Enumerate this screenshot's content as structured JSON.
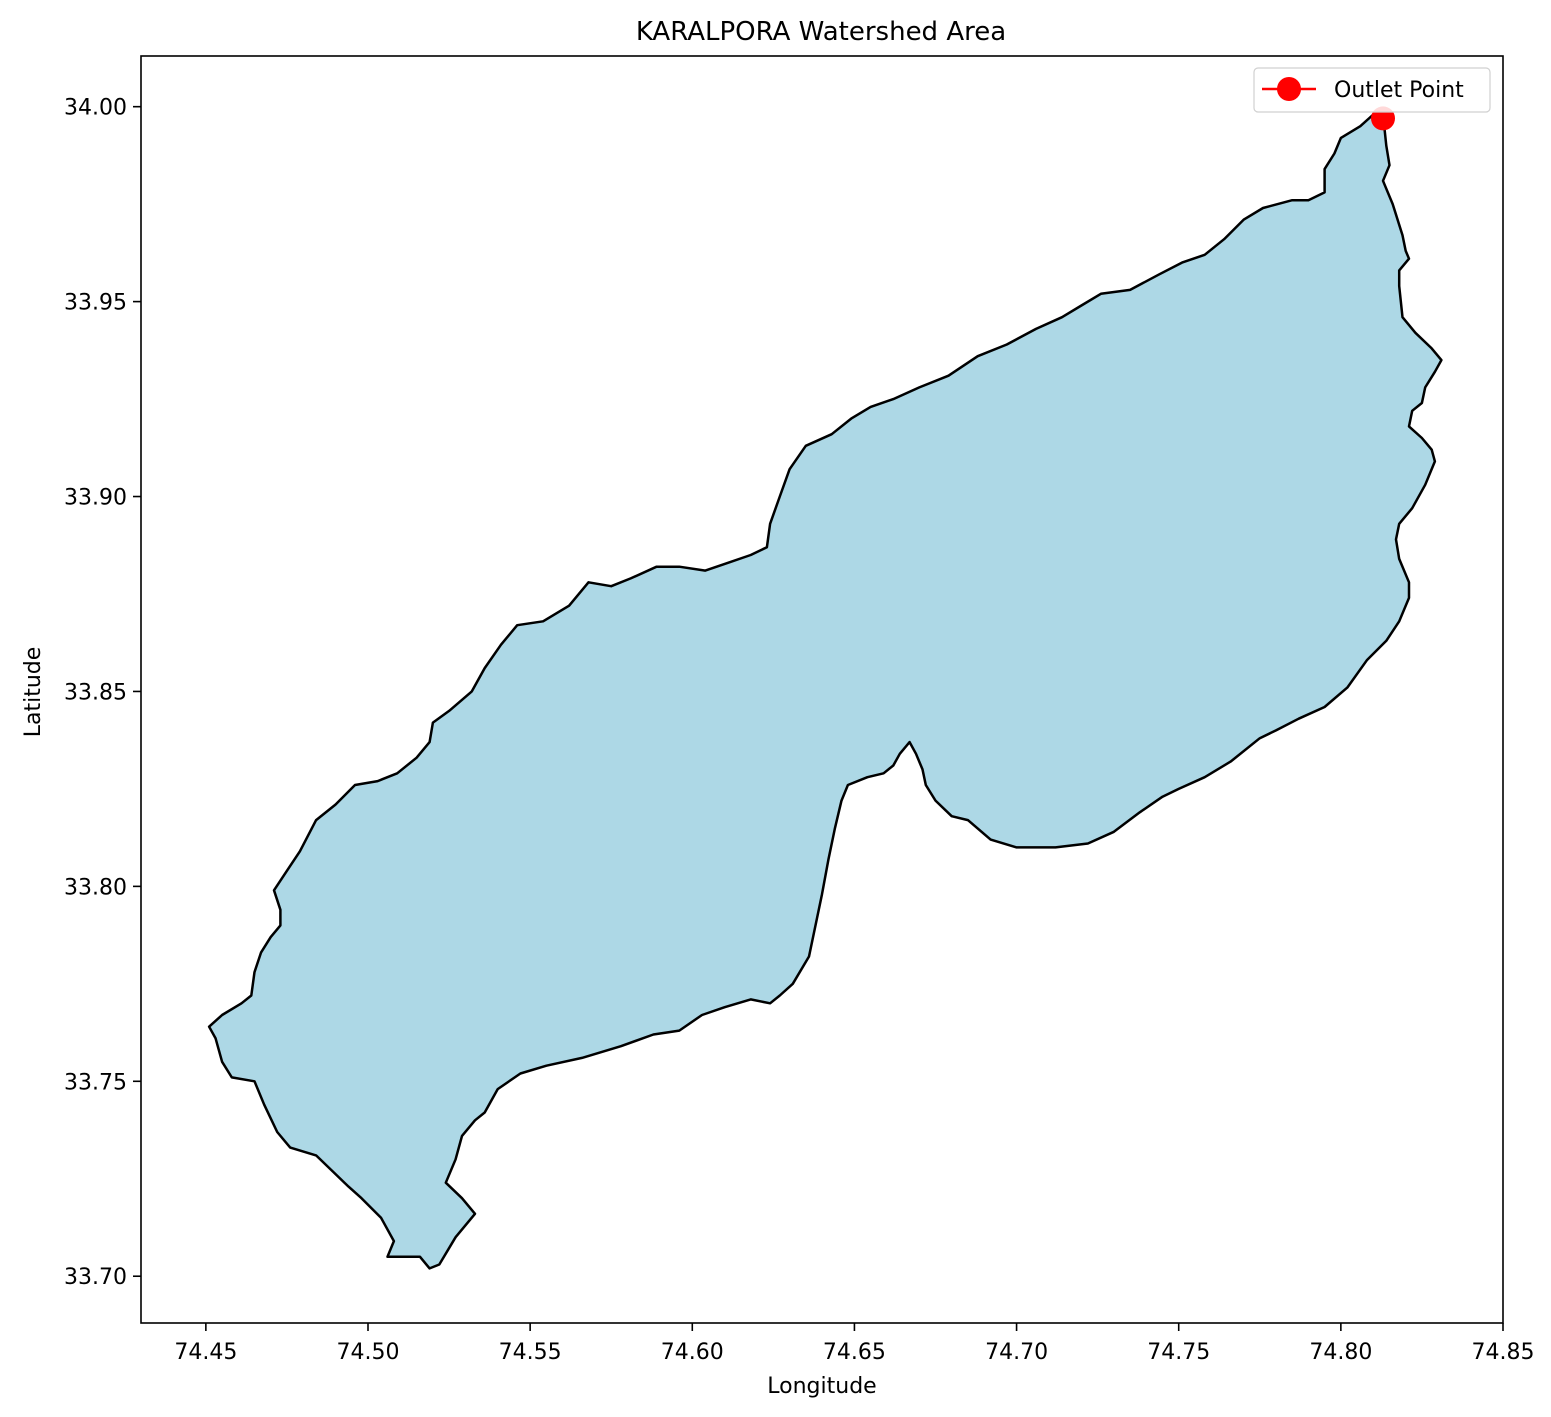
{
  "chart_data": {
    "type": "map",
    "title": "KARALPORA Watershed Area",
    "xlabel": "Longitude",
    "ylabel": "Latitude",
    "xlim": [
      74.43,
      74.85
    ],
    "ylim": [
      33.688,
      34.013
    ],
    "x_ticks": [
      "74.45",
      "74.50",
      "74.55",
      "74.60",
      "74.65",
      "74.70",
      "74.75",
      "74.80",
      "74.85"
    ],
    "y_ticks": [
      "33.70",
      "33.75",
      "33.80",
      "33.85",
      "33.90",
      "33.95",
      "34.00"
    ],
    "grid": false,
    "legend_position": "top-right",
    "colors": {
      "fill": "#add8e6",
      "boundary": "#000000",
      "outlet": "#ff0000"
    },
    "watershed": {
      "boundary": [
        [
          74.813,
          33.998
        ],
        [
          74.814,
          33.99
        ],
        [
          74.815,
          33.985
        ],
        [
          74.813,
          33.981
        ],
        [
          74.816,
          33.975
        ],
        [
          74.819,
          33.967
        ],
        [
          74.82,
          33.963
        ],
        [
          74.821,
          33.961
        ],
        [
          74.818,
          33.958
        ],
        [
          74.818,
          33.954
        ],
        [
          74.819,
          33.946
        ],
        [
          74.823,
          33.942
        ],
        [
          74.828,
          33.938
        ],
        [
          74.831,
          33.935
        ],
        [
          74.829,
          33.932
        ],
        [
          74.826,
          33.928
        ],
        [
          74.825,
          33.924
        ],
        [
          74.822,
          33.922
        ],
        [
          74.821,
          33.918
        ],
        [
          74.825,
          33.915
        ],
        [
          74.828,
          33.912
        ],
        [
          74.829,
          33.909
        ],
        [
          74.826,
          33.903
        ],
        [
          74.822,
          33.897
        ],
        [
          74.818,
          33.893
        ],
        [
          74.817,
          33.889
        ],
        [
          74.818,
          33.884
        ],
        [
          74.821,
          33.878
        ],
        [
          74.821,
          33.874
        ],
        [
          74.818,
          33.868
        ],
        [
          74.814,
          33.863
        ],
        [
          74.808,
          33.858
        ],
        [
          74.802,
          33.851
        ],
        [
          74.795,
          33.846
        ],
        [
          74.787,
          33.843
        ],
        [
          74.78,
          33.84
        ],
        [
          74.775,
          33.838
        ],
        [
          74.766,
          33.832
        ],
        [
          74.758,
          33.828
        ],
        [
          74.75,
          33.825
        ],
        [
          74.745,
          33.823
        ],
        [
          74.738,
          33.819
        ],
        [
          74.73,
          33.814
        ],
        [
          74.722,
          33.811
        ],
        [
          74.712,
          33.81
        ],
        [
          74.7,
          33.81
        ],
        [
          74.692,
          33.812
        ],
        [
          74.685,
          33.817
        ],
        [
          74.68,
          33.818
        ],
        [
          74.675,
          33.822
        ],
        [
          74.672,
          33.826
        ],
        [
          74.671,
          33.83
        ],
        [
          74.669,
          33.834
        ],
        [
          74.667,
          33.837
        ],
        [
          74.664,
          33.834
        ],
        [
          74.662,
          33.831
        ],
        [
          74.659,
          33.829
        ],
        [
          74.654,
          33.828
        ],
        [
          74.648,
          33.826
        ],
        [
          74.646,
          33.822
        ],
        [
          74.644,
          33.815
        ],
        [
          74.642,
          33.807
        ],
        [
          74.64,
          33.798
        ],
        [
          74.638,
          33.79
        ],
        [
          74.636,
          33.782
        ],
        [
          74.631,
          33.775
        ],
        [
          74.627,
          33.772
        ],
        [
          74.624,
          33.77
        ],
        [
          74.618,
          33.771
        ],
        [
          74.61,
          33.769
        ],
        [
          74.603,
          33.767
        ],
        [
          74.596,
          33.763
        ],
        [
          74.588,
          33.762
        ],
        [
          74.578,
          33.759
        ],
        [
          74.566,
          33.756
        ],
        [
          74.555,
          33.754
        ],
        [
          74.547,
          33.752
        ],
        [
          74.54,
          33.748
        ],
        [
          74.536,
          33.742
        ],
        [
          74.533,
          33.74
        ],
        [
          74.529,
          33.736
        ],
        [
          74.527,
          33.73
        ],
        [
          74.524,
          33.724
        ],
        [
          74.529,
          33.72
        ],
        [
          74.533,
          33.716
        ],
        [
          74.527,
          33.71
        ],
        [
          74.522,
          33.703
        ],
        [
          74.519,
          33.702
        ],
        [
          74.516,
          33.705
        ],
        [
          74.511,
          33.705
        ],
        [
          74.506,
          33.705
        ],
        [
          74.508,
          33.709
        ],
        [
          74.504,
          33.715
        ],
        [
          74.498,
          33.72
        ],
        [
          74.494,
          33.723
        ],
        [
          74.489,
          33.727
        ],
        [
          74.484,
          33.731
        ],
        [
          74.476,
          33.733
        ],
        [
          74.472,
          33.737
        ],
        [
          74.468,
          33.744
        ],
        [
          74.465,
          33.75
        ],
        [
          74.458,
          33.751
        ],
        [
          74.455,
          33.755
        ],
        [
          74.453,
          33.761
        ],
        [
          74.451,
          33.764
        ],
        [
          74.455,
          33.767
        ],
        [
          74.461,
          33.77
        ],
        [
          74.464,
          33.772
        ],
        [
          74.465,
          33.778
        ],
        [
          74.467,
          33.783
        ],
        [
          74.47,
          33.787
        ],
        [
          74.473,
          33.79
        ],
        [
          74.473,
          33.794
        ],
        [
          74.471,
          33.799
        ],
        [
          74.475,
          33.804
        ],
        [
          74.479,
          33.809
        ],
        [
          74.484,
          33.817
        ],
        [
          74.49,
          33.821
        ],
        [
          74.496,
          33.826
        ],
        [
          74.503,
          33.827
        ],
        [
          74.509,
          33.829
        ],
        [
          74.515,
          33.833
        ],
        [
          74.519,
          33.837
        ],
        [
          74.52,
          33.842
        ],
        [
          74.525,
          33.845
        ],
        [
          74.532,
          33.85
        ],
        [
          74.536,
          33.856
        ],
        [
          74.541,
          33.862
        ],
        [
          74.546,
          33.867
        ],
        [
          74.554,
          33.868
        ],
        [
          74.562,
          33.872
        ],
        [
          74.568,
          33.878
        ],
        [
          74.575,
          33.877
        ],
        [
          74.581,
          33.879
        ],
        [
          74.589,
          33.882
        ],
        [
          74.596,
          33.882
        ],
        [
          74.604,
          33.881
        ],
        [
          74.611,
          33.883
        ],
        [
          74.618,
          33.885
        ],
        [
          74.623,
          33.887
        ],
        [
          74.624,
          33.893
        ],
        [
          74.627,
          33.9
        ],
        [
          74.63,
          33.907
        ],
        [
          74.635,
          33.913
        ],
        [
          74.643,
          33.916
        ],
        [
          74.649,
          33.92
        ],
        [
          74.655,
          33.923
        ],
        [
          74.662,
          33.925
        ],
        [
          74.67,
          33.928
        ],
        [
          74.679,
          33.931
        ],
        [
          74.688,
          33.936
        ],
        [
          74.697,
          33.939
        ],
        [
          74.706,
          33.943
        ],
        [
          74.714,
          33.946
        ],
        [
          74.72,
          33.949
        ],
        [
          74.726,
          33.952
        ],
        [
          74.735,
          33.953
        ],
        [
          74.744,
          33.957
        ],
        [
          74.751,
          33.96
        ],
        [
          74.758,
          33.962
        ],
        [
          74.764,
          33.966
        ],
        [
          74.77,
          33.971
        ],
        [
          74.776,
          33.974
        ],
        [
          74.785,
          33.976
        ],
        [
          74.79,
          33.976
        ],
        [
          74.795,
          33.978
        ],
        [
          74.795,
          33.984
        ],
        [
          74.798,
          33.988
        ],
        [
          74.8,
          33.992
        ],
        [
          74.806,
          33.995
        ],
        [
          74.81,
          33.998
        ],
        [
          74.813,
          33.998
        ]
      ]
    },
    "outlet": {
      "name": "Outlet Point",
      "lon": 74.813,
      "lat": 33.997
    }
  }
}
